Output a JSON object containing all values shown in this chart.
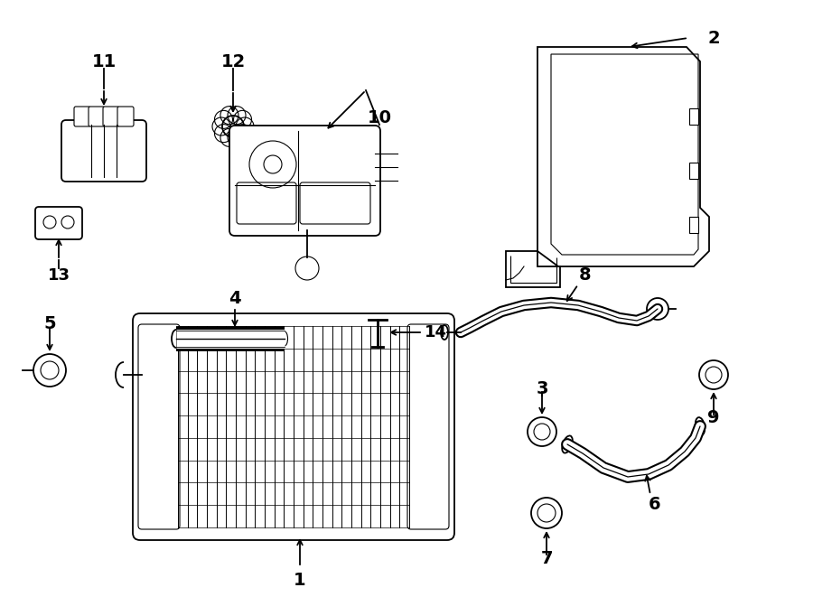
{
  "bg_color": "#ffffff",
  "line_color": "#000000"
}
